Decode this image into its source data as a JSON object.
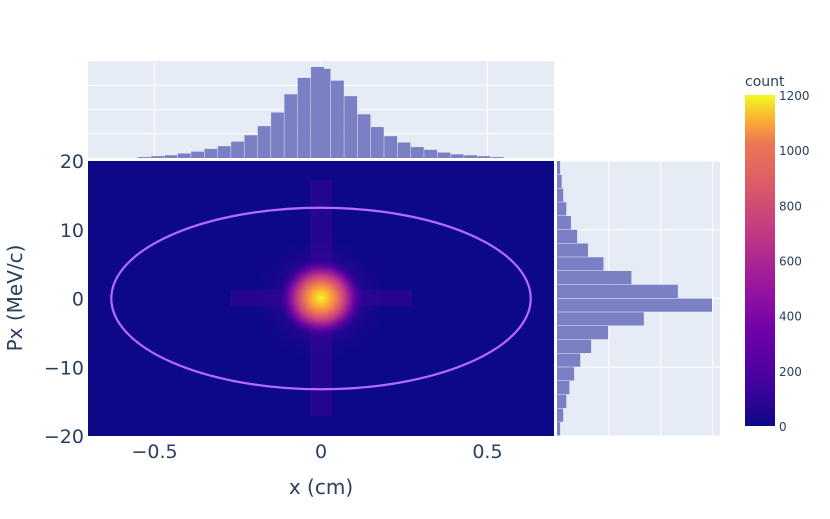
{
  "chart_data": [
    {
      "type": "heatmap",
      "xlabel": "x (cm)",
      "ylabel": "Px (MeV/c)",
      "xlim": [
        -0.7,
        0.7
      ],
      "ylim": [
        -20,
        20
      ],
      "x_ticks": [
        -0.5,
        0,
        0.5
      ],
      "x_tick_labels": [
        "−0.5",
        "0",
        "0.5"
      ],
      "y_ticks": [
        -20,
        -10,
        0,
        10,
        20
      ],
      "y_tick_labels": [
        "−20",
        "−10",
        "0",
        "10",
        "20"
      ],
      "peak": {
        "x": 0,
        "y": 0,
        "count": 1200
      },
      "ellipse": {
        "center_x": 0,
        "center_y": 0,
        "semi_axis_x": 0.63,
        "semi_axis_y": 13.2,
        "color": "#b46cff"
      },
      "colorscale": "plasma",
      "colorbar": {
        "title": "count",
        "range": [
          0,
          1200
        ],
        "ticks": [
          0,
          200,
          400,
          600,
          800,
          1000,
          1200
        ],
        "tick_labels": [
          "0",
          "200",
          "400",
          "600",
          "800",
          "1000",
          "1200"
        ]
      }
    },
    {
      "type": "bar",
      "orientation": "vertical",
      "description_of_axis": "marginal histogram of x",
      "xlim": [
        -0.7,
        0.7
      ],
      "bin_centers": [
        -0.53,
        -0.49,
        -0.45,
        -0.41,
        -0.37,
        -0.33,
        -0.29,
        -0.25,
        -0.21,
        -0.17,
        -0.13,
        -0.09,
        -0.05,
        -0.01,
        0.01,
        0.05,
        0.09,
        0.13,
        0.17,
        0.21,
        0.25,
        0.29,
        0.33,
        0.37,
        0.41,
        0.45,
        0.49,
        0.53
      ],
      "values": [
        0.01,
        0.02,
        0.03,
        0.05,
        0.07,
        0.1,
        0.13,
        0.18,
        0.25,
        0.35,
        0.5,
        0.7,
        0.88,
        1.0,
        0.98,
        0.85,
        0.68,
        0.48,
        0.34,
        0.24,
        0.17,
        0.12,
        0.09,
        0.06,
        0.04,
        0.03,
        0.02,
        0.01
      ],
      "color": "#7b7fc4"
    },
    {
      "type": "bar",
      "orientation": "horizontal",
      "description_of_axis": "marginal histogram of Px",
      "ylim": [
        -20,
        20
      ],
      "bin_centers": [
        -19,
        -17,
        -15,
        -13,
        -11,
        -9,
        -7,
        -5,
        -3,
        -1,
        1,
        3,
        5,
        7,
        9,
        11,
        13,
        15,
        17,
        19
      ],
      "values": [
        0.02,
        0.04,
        0.06,
        0.08,
        0.11,
        0.15,
        0.22,
        0.33,
        0.56,
        1.0,
        0.78,
        0.48,
        0.3,
        0.2,
        0.13,
        0.09,
        0.06,
        0.04,
        0.03,
        0.02
      ],
      "color": "#7b7fc4"
    }
  ]
}
